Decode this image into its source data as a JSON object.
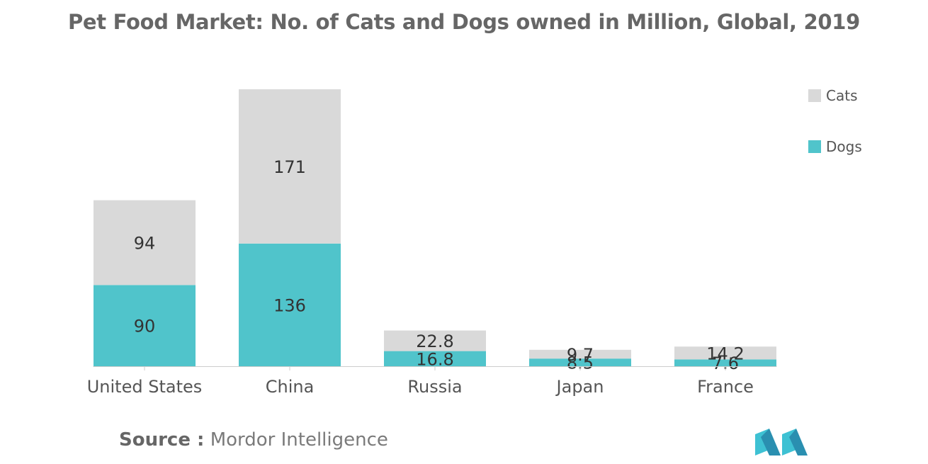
{
  "title": "Pet Food Market: No. of Cats and Dogs owned in Million, Global, 2019",
  "source": {
    "label": "Source :",
    "text": "Mordor Intelligence"
  },
  "logo_icon": "mordor-intelligence-logo",
  "colors": {
    "cats": "#d9d9d9",
    "dogs": "#50c4cb",
    "text": "#333333",
    "axis": "#cccccc",
    "logo": "#3ec1d3"
  },
  "chart_data": {
    "type": "bar",
    "stacked": true,
    "title": "Pet Food Market: No. of Cats and Dogs owned in Million, Global, 2019",
    "categories": [
      "United States",
      "China",
      "Russia",
      "Japan",
      "France"
    ],
    "series": [
      {
        "name": "Dogs",
        "values": [
          90,
          136,
          16.8,
          8.5,
          7.6
        ]
      },
      {
        "name": "Cats",
        "values": [
          94,
          171,
          22.8,
          9.7,
          14.2
        ]
      }
    ],
    "ylim": [
      0,
      307
    ],
    "grid": false,
    "legend": "top-right",
    "data_labels": true
  }
}
